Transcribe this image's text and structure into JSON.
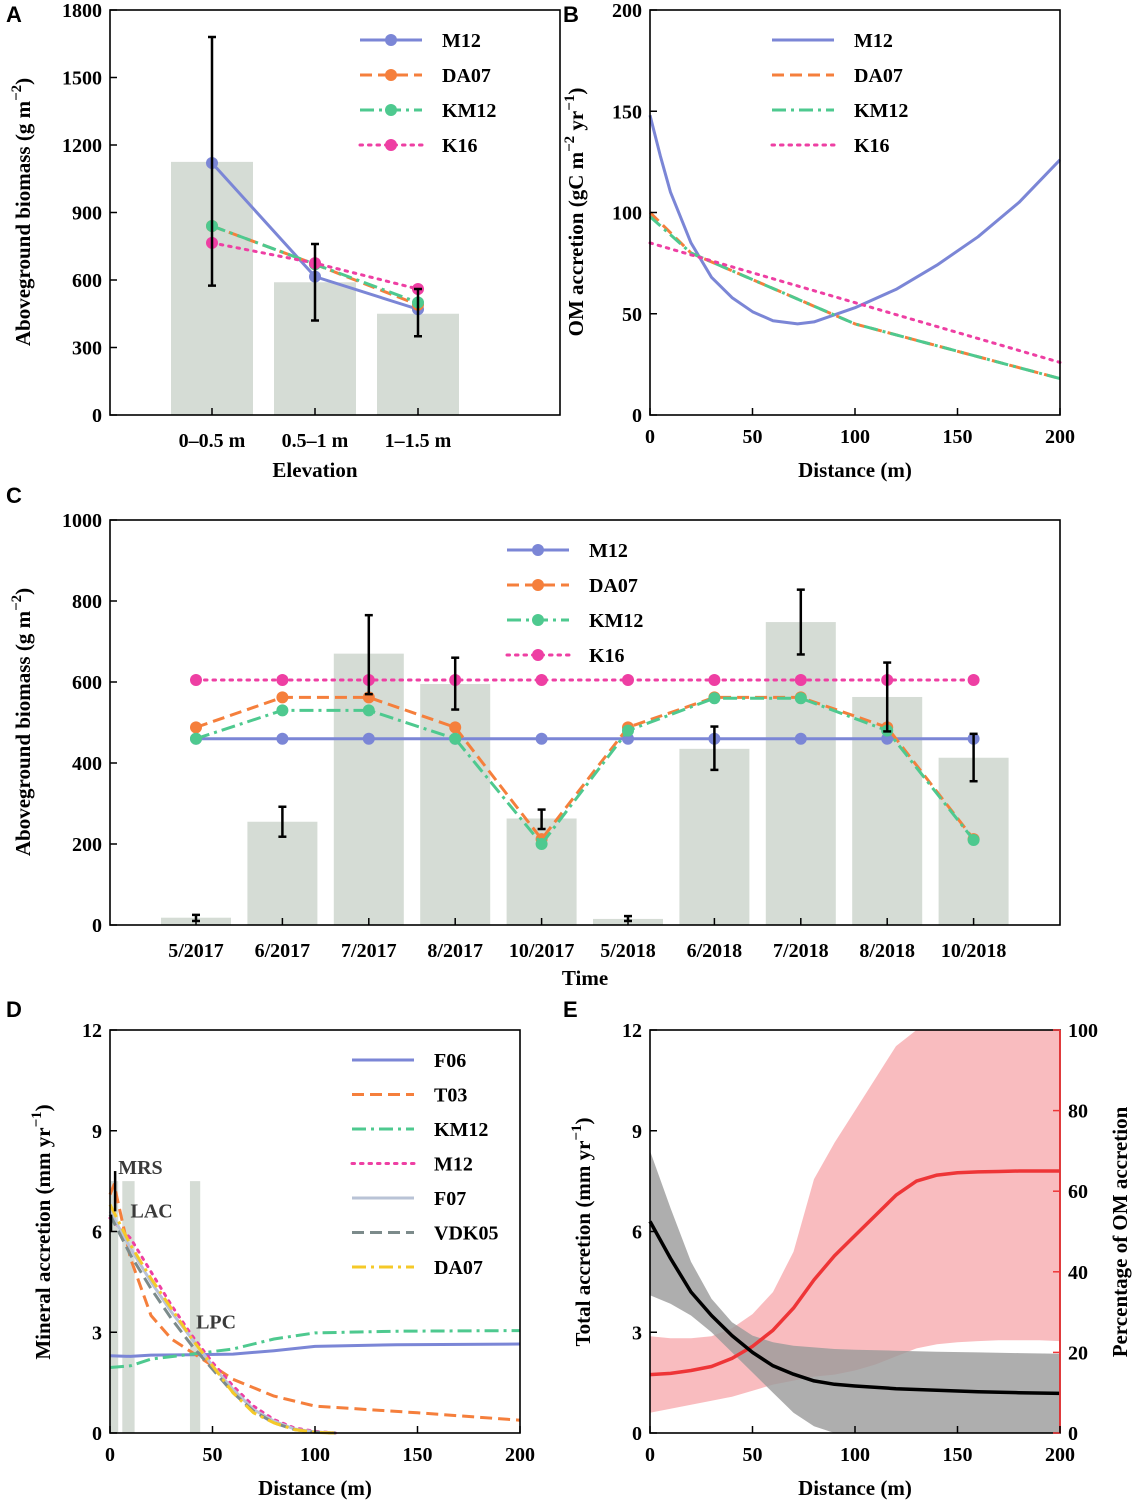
{
  "colors": {
    "M12": "#7b86d6",
    "DA07": "#f57f3c",
    "KM12": "#4ec98f",
    "K16": "#ee3fa3",
    "F06": "#7b86d6",
    "T03": "#f57f3c",
    "F07": "#b9c3d6",
    "VDK05": "#7c8b8b",
    "DA07_D": "#f5c928",
    "bar": "#d5dcd5",
    "black": "#000000",
    "red": "#ee3537",
    "redband": "#f7a6a9",
    "grayband": "#9a9a9a"
  },
  "chart_data": [
    {
      "panel": "A",
      "type": "bar",
      "xlabel": "Elevation",
      "ylabel": "Aboveground biomass (g m⁻²)",
      "ylim": [
        0,
        1800
      ],
      "yticks": [
        0,
        300,
        600,
        900,
        1200,
        1500,
        1800
      ],
      "categories": [
        "0–0.5 m",
        "0.5–1 m",
        "1–1.5 m"
      ],
      "bars": [
        1125,
        590,
        450
      ],
      "errorbars": [
        [
          575,
          1680
        ],
        [
          420,
          760
        ],
        [
          350,
          560
        ]
      ],
      "series": [
        {
          "name": "M12",
          "style": "solid",
          "values": [
            1120,
            615,
            470
          ]
        },
        {
          "name": "DA07",
          "style": "dashed",
          "values": [
            840,
            670,
            490
          ]
        },
        {
          "name": "KM12",
          "style": "dashdot",
          "values": [
            840,
            670,
            500
          ]
        },
        {
          "name": "K16",
          "style": "dotted",
          "values": [
            765,
            675,
            560
          ]
        }
      ],
      "legend": [
        "M12",
        "DA07",
        "KM12",
        "K16"
      ]
    },
    {
      "panel": "B",
      "type": "line",
      "xlabel": "Distance (m)",
      "ylabel": "OM accretion (gC m⁻² yr⁻¹)",
      "xlim": [
        0,
        200
      ],
      "ylim": [
        0,
        200
      ],
      "xticks": [
        0,
        50,
        100,
        150,
        200
      ],
      "yticks": [
        0,
        50,
        100,
        150,
        200
      ],
      "series": [
        {
          "name": "M12",
          "style": "solid",
          "x": [
            0,
            5,
            10,
            20,
            30,
            40,
            50,
            60,
            72,
            80,
            90,
            100,
            120,
            140,
            160,
            180,
            200
          ],
          "y": [
            148,
            128,
            110,
            85,
            68,
            58,
            51,
            46.5,
            45,
            46,
            49.5,
            53,
            62,
            74,
            88,
            105,
            126
          ]
        },
        {
          "name": "DA07",
          "style": "dashed",
          "x": [
            0,
            20,
            100,
            200
          ],
          "y": [
            100,
            80,
            45,
            18
          ]
        },
        {
          "name": "KM12",
          "style": "dashdot",
          "x": [
            0,
            20,
            100,
            200
          ],
          "y": [
            98,
            80,
            45,
            18
          ]
        },
        {
          "name": "K16",
          "style": "dotted",
          "x": [
            0,
            200
          ],
          "y": [
            85,
            26
          ]
        }
      ],
      "legend": [
        "M12",
        "DA07",
        "KM12",
        "K16"
      ]
    },
    {
      "panel": "C",
      "type": "bar",
      "xlabel": "Time",
      "ylabel": "Aboveground biomass (g m⁻²)",
      "ylim": [
        0,
        1000
      ],
      "yticks": [
        0,
        200,
        400,
        600,
        800,
        1000
      ],
      "categories": [
        "5/2017",
        "6/2017",
        "7/2017",
        "8/2017",
        "10/2017",
        "5/2018",
        "6/2018",
        "7/2018",
        "8/2018",
        "10/2018"
      ],
      "bars": [
        18,
        255,
        670,
        595,
        263,
        15,
        435,
        748,
        563,
        413
      ],
      "errorbars": [
        [
          10,
          25
        ],
        [
          218,
          292
        ],
        [
          570,
          765
        ],
        [
          532,
          660
        ],
        [
          237,
          285
        ],
        [
          10,
          22
        ],
        [
          383,
          490
        ],
        [
          668,
          828
        ],
        [
          478,
          648
        ],
        [
          355,
          472
        ]
      ],
      "series": [
        {
          "name": "M12",
          "style": "solid",
          "values": [
            460,
            460,
            460,
            460,
            460,
            460,
            460,
            460,
            460,
            460
          ]
        },
        {
          "name": "DA07",
          "style": "dashed",
          "values": [
            488,
            562,
            562,
            488,
            212,
            488,
            562,
            562,
            488,
            212
          ]
        },
        {
          "name": "KM12",
          "style": "dashdot",
          "values": [
            460,
            530,
            530,
            460,
            200,
            480,
            560,
            560,
            480,
            210
          ]
        },
        {
          "name": "K16",
          "style": "dotted",
          "values": [
            605,
            605,
            605,
            605,
            605,
            605,
            605,
            605,
            605,
            605
          ]
        }
      ],
      "legend": [
        "M12",
        "DA07",
        "KM12",
        "K16"
      ]
    },
    {
      "panel": "D",
      "type": "line",
      "xlabel": "Distance (m)",
      "ylabel": "Mineral accretion (mm yr⁻¹)",
      "xlim": [
        0,
        200
      ],
      "ylim": [
        0,
        12
      ],
      "xticks": [
        0,
        50,
        100,
        150,
        200
      ],
      "yticks": [
        0,
        3,
        6,
        9,
        12
      ],
      "annotations": [
        {
          "text": "MRS",
          "x": 4,
          "y": 7.6
        },
        {
          "text": "LAC",
          "x": 10,
          "y": 6.3
        },
        {
          "text": "LPC",
          "x": 42,
          "y": 3.0
        }
      ],
      "shaded_x": [
        [
          0,
          4
        ],
        [
          6,
          12
        ],
        [
          39,
          44
        ]
      ],
      "series": [
        {
          "name": "F06",
          "style": "solid",
          "x": [
            0,
            10,
            20,
            40,
            60,
            80,
            100,
            140,
            200
          ],
          "y": [
            2.3,
            2.28,
            2.32,
            2.33,
            2.35,
            2.45,
            2.58,
            2.63,
            2.65
          ]
        },
        {
          "name": "T03",
          "style": "dashed",
          "x": [
            0,
            2,
            10,
            20,
            30,
            40,
            50,
            60,
            80,
            100,
            150,
            200
          ],
          "y": [
            7.1,
            7.4,
            5.2,
            3.5,
            2.8,
            2.4,
            2.0,
            1.6,
            1.1,
            0.8,
            0.6,
            0.38
          ]
        },
        {
          "name": "KM12",
          "style": "dashdot",
          "x": [
            0,
            10,
            20,
            40,
            60,
            80,
            100,
            140,
            200
          ],
          "y": [
            1.95,
            2.0,
            2.2,
            2.35,
            2.5,
            2.8,
            2.98,
            3.03,
            3.05
          ]
        },
        {
          "name": "M12",
          "style": "dotted",
          "x": [
            0,
            10,
            20,
            30,
            40,
            50,
            60,
            70,
            80,
            90,
            100,
            110
          ],
          "y": [
            6.4,
            5.8,
            4.8,
            3.8,
            2.9,
            2.1,
            1.4,
            0.8,
            0.4,
            0.15,
            0.05,
            0
          ]
        },
        {
          "name": "F07",
          "style": "solid",
          "x": [
            0,
            10,
            20,
            30,
            40,
            50,
            60,
            70,
            80,
            90,
            100,
            110
          ],
          "y": [
            6.6,
            5.5,
            4.5,
            3.6,
            2.8,
            2.0,
            1.3,
            0.7,
            0.35,
            0.12,
            0.03,
            0
          ]
        },
        {
          "name": "VDK05",
          "style": "dashed",
          "x": [
            0,
            10,
            20,
            30,
            40,
            50,
            60,
            70,
            80,
            90,
            100,
            110
          ],
          "y": [
            6.5,
            5.3,
            4.3,
            3.4,
            2.6,
            1.9,
            1.2,
            0.65,
            0.3,
            0.1,
            0.02,
            0
          ]
        },
        {
          "name": "DA07",
          "style": "dashdot",
          "x": [
            0,
            10,
            20,
            30,
            40,
            50,
            60,
            70,
            80,
            90,
            100,
            110
          ],
          "y": [
            6.8,
            5.6,
            4.6,
            3.7,
            2.8,
            2.0,
            1.2,
            0.6,
            0.3,
            0.1,
            0.02,
            0
          ]
        }
      ],
      "legend": [
        "F06",
        "T03",
        "KM12",
        "M12",
        "F07",
        "VDK05",
        "DA07"
      ]
    },
    {
      "panel": "E",
      "type": "area",
      "xlabel": "Distance (m)",
      "ylabel": "Total accretion (mm yr⁻¹)",
      "ylabel_right": "Percentage of OM accretion",
      "xlim": [
        0,
        200
      ],
      "ylim": [
        0,
        12
      ],
      "ylim_right": [
        0,
        100
      ],
      "xticks": [
        0,
        50,
        100,
        150,
        200
      ],
      "yticks": [
        0,
        3,
        6,
        9,
        12
      ],
      "yticks_right": [
        0,
        20,
        40,
        60,
        80,
        100
      ],
      "total_accretion": {
        "x": [
          0,
          10,
          20,
          30,
          40,
          50,
          60,
          70,
          80,
          90,
          100,
          120,
          140,
          160,
          180,
          200
        ],
        "mean": [
          6.3,
          5.2,
          4.2,
          3.5,
          2.9,
          2.4,
          2.0,
          1.75,
          1.55,
          1.45,
          1.4,
          1.32,
          1.27,
          1.23,
          1.2,
          1.18
        ],
        "lower": [
          4.1,
          3.85,
          3.5,
          3.0,
          2.4,
          1.8,
          1.2,
          0.6,
          0.2,
          0,
          0,
          0,
          0,
          0,
          0,
          0
        ],
        "upper": [
          8.4,
          6.7,
          5.1,
          4.0,
          3.3,
          2.9,
          2.7,
          2.6,
          2.55,
          2.5,
          2.48,
          2.45,
          2.42,
          2.4,
          2.38,
          2.36
        ]
      },
      "om_percentage": {
        "x": [
          0,
          10,
          20,
          30,
          40,
          50,
          60,
          70,
          80,
          90,
          100,
          110,
          120,
          130,
          140,
          150,
          160,
          170,
          180,
          190,
          200
        ],
        "mean": [
          14.5,
          14.8,
          15.5,
          16.5,
          18.5,
          21.5,
          25.5,
          31,
          38,
          44,
          49,
          54,
          59,
          62.5,
          64,
          64.6,
          64.8,
          64.9,
          65,
          65,
          65
        ],
        "lower": [
          5,
          6,
          7,
          8,
          9,
          10.5,
          12,
          13,
          14,
          14.5,
          15.5,
          17,
          19,
          21,
          22,
          22.5,
          22.8,
          23,
          23,
          23,
          22.8
        ],
        "upper": [
          24,
          23.5,
          23.5,
          24,
          26,
          29.5,
          35,
          45,
          63,
          72,
          80,
          88,
          96,
          100,
          100,
          100,
          100,
          100,
          100,
          100,
          100
        ]
      }
    }
  ],
  "panel_labels": {
    "A": "A",
    "B": "B",
    "C": "C",
    "D": "D",
    "E": "E"
  }
}
